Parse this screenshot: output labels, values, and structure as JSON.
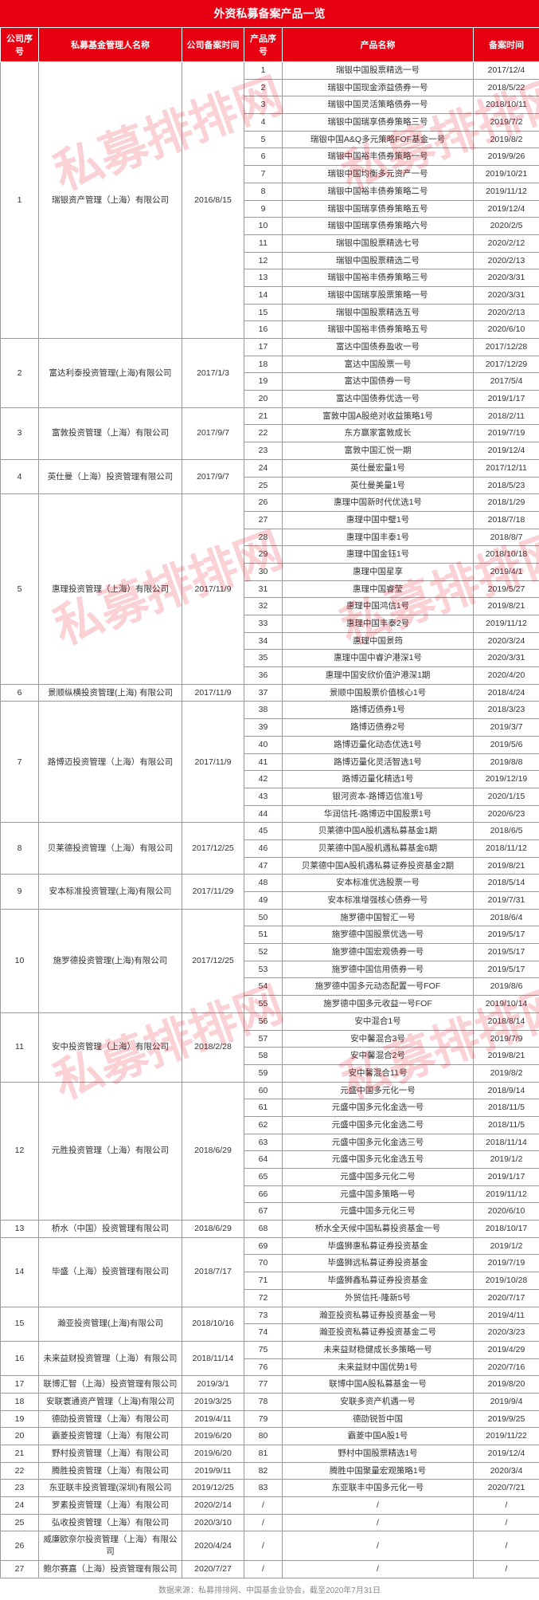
{
  "title": "外资私募备案产品一览",
  "watermark": "私募排排网",
  "headers": {
    "company_seq": "公司序号",
    "manager_name": "私募基金管理人名称",
    "company_reg_date": "公司备案时间",
    "product_seq": "产品序号",
    "product_name": "产品名称",
    "reg_date": "备案时间"
  },
  "footer": "数据来源：私募排排网、中国基金业协会，截至2020年7月31日",
  "companies": [
    {
      "seq": "1",
      "mgr": "瑞银资产管理（上海）有限公司",
      "cdate": "2016/8/15",
      "products": [
        {
          "pseq": "1",
          "pname": "瑞银中国股票精选一号",
          "pdate": "2017/12/4"
        },
        {
          "pseq": "2",
          "pname": "瑞银中国现金添益债券一号",
          "pdate": "2018/5/22"
        },
        {
          "pseq": "3",
          "pname": "瑞银中国灵活策略债券一号",
          "pdate": "2018/10/11"
        },
        {
          "pseq": "4",
          "pname": "瑞银中国瑞享债券策略三号",
          "pdate": "2019/7/2"
        },
        {
          "pseq": "5",
          "pname": "瑞银中国A&Q多元策略FOF基金一号",
          "pdate": "2019/8/2"
        },
        {
          "pseq": "6",
          "pname": "瑞银中国裕丰债券策略一号",
          "pdate": "2019/9/26"
        },
        {
          "pseq": "7",
          "pname": "瑞银中国均衡多元资产一号",
          "pdate": "2019/10/21"
        },
        {
          "pseq": "8",
          "pname": "瑞银中国裕丰债券策略二号",
          "pdate": "2019/11/12"
        },
        {
          "pseq": "9",
          "pname": "瑞银中国瑞享债券策略五号",
          "pdate": "2019/12/4"
        },
        {
          "pseq": "10",
          "pname": "瑞银中国瑞享债券策略六号",
          "pdate": "2020/2/5"
        },
        {
          "pseq": "11",
          "pname": "瑞银中国股票精选七号",
          "pdate": "2020/2/12"
        },
        {
          "pseq": "12",
          "pname": "瑞银中国股票精选二号",
          "pdate": "2020/2/13"
        },
        {
          "pseq": "13",
          "pname": "瑞银中国裕丰债券策略三号",
          "pdate": "2020/3/31"
        },
        {
          "pseq": "14",
          "pname": "瑞银中国瑞享股票策略一号",
          "pdate": "2020/3/31"
        },
        {
          "pseq": "15",
          "pname": "瑞银中国股票精选五号",
          "pdate": "2020/2/13"
        },
        {
          "pseq": "16",
          "pname": "瑞银中国裕丰债券策略五号",
          "pdate": "2020/6/10"
        }
      ]
    },
    {
      "seq": "2",
      "mgr": "富达利泰投资管理(上海)有限公司",
      "cdate": "2017/1/3",
      "products": [
        {
          "pseq": "17",
          "pname": "富达中国债券盈收一号",
          "pdate": "2017/12/28"
        },
        {
          "pseq": "18",
          "pname": "富达中国股票一号",
          "pdate": "2017/12/29"
        },
        {
          "pseq": "19",
          "pname": "富达中国债券一号",
          "pdate": "2017/5/4"
        },
        {
          "pseq": "20",
          "pname": "富达中国债券优选一号",
          "pdate": "2019/1/17"
        }
      ]
    },
    {
      "seq": "3",
      "mgr": "富敦投资管理（上海）有限公司",
      "cdate": "2017/9/7",
      "products": [
        {
          "pseq": "21",
          "pname": "富敦中国A股绝对收益策略1号",
          "pdate": "2018/2/11"
        },
        {
          "pseq": "22",
          "pname": "东方赢家富敦成长",
          "pdate": "2019/7/19"
        },
        {
          "pseq": "23",
          "pname": "富敦中国汇悦一期",
          "pdate": "2019/12/4"
        }
      ]
    },
    {
      "seq": "4",
      "mgr": "英仕曼（上海）投资管理有限公司",
      "cdate": "2017/9/7",
      "products": [
        {
          "pseq": "24",
          "pname": "英仕曼宏量1号",
          "pdate": "2017/12/11"
        },
        {
          "pseq": "25",
          "pname": "英仕曼美量1号",
          "pdate": "2018/5/23"
        }
      ]
    },
    {
      "seq": "5",
      "mgr": "惠理投资管理（上海）有限公司",
      "cdate": "2017/11/9",
      "products": [
        {
          "pseq": "26",
          "pname": "惠理中国新时代优选1号",
          "pdate": "2018/1/29"
        },
        {
          "pseq": "27",
          "pname": "惠理中国中璧1号",
          "pdate": "2018/7/18"
        },
        {
          "pseq": "28",
          "pname": "惠理中国丰泰1号",
          "pdate": "2018/8/7"
        },
        {
          "pseq": "29",
          "pname": "惠理中国金钰1号",
          "pdate": "2018/10/18"
        },
        {
          "pseq": "30",
          "pname": "惠理中国星享",
          "pdate": "2019/4/1"
        },
        {
          "pseq": "31",
          "pname": "惠理中国睿莹",
          "pdate": "2019/5/27"
        },
        {
          "pseq": "32",
          "pname": "惠理中国鸿信1号",
          "pdate": "2019/8/21"
        },
        {
          "pseq": "33",
          "pname": "惠理中国丰泰2号",
          "pdate": "2019/11/12"
        },
        {
          "pseq": "34",
          "pname": "惠理中国景筠",
          "pdate": "2020/3/24"
        },
        {
          "pseq": "35",
          "pname": "惠理中国中睿沪港深1号",
          "pdate": "2020/3/31"
        },
        {
          "pseq": "36",
          "pname": "惠理中国安欣价值沪港深1期",
          "pdate": "2020/4/20"
        }
      ]
    },
    {
      "seq": "6",
      "mgr": "景顺纵横投资管理(上海) 有限公司",
      "cdate": "2017/11/9",
      "products": [
        {
          "pseq": "37",
          "pname": "景顺中国股票价值核心1号",
          "pdate": "2018/4/24"
        }
      ]
    },
    {
      "seq": "7",
      "mgr": "路博迈投资管理（上海）有限公司",
      "cdate": "2017/11/9",
      "products": [
        {
          "pseq": "38",
          "pname": "路博迈债券1号",
          "pdate": "2018/3/23"
        },
        {
          "pseq": "39",
          "pname": "路博迈债券2号",
          "pdate": "2019/3/7"
        },
        {
          "pseq": "40",
          "pname": "路博迈量化动态优选1号",
          "pdate": "2019/5/6"
        },
        {
          "pseq": "41",
          "pname": "路博迈量化灵活智选1号",
          "pdate": "2019/8/8"
        },
        {
          "pseq": "42",
          "pname": "路博迈量化精选1号",
          "pdate": "2019/12/19"
        },
        {
          "pseq": "43",
          "pname": "银河资本-路博迈信准1号",
          "pdate": "2020/1/15"
        },
        {
          "pseq": "44",
          "pname": "华润信托-路博迈中国股票1号",
          "pdate": "2020/6/23"
        }
      ]
    },
    {
      "seq": "8",
      "mgr": "贝莱德投资管理（上海）有限公司",
      "cdate": "2017/12/25",
      "products": [
        {
          "pseq": "45",
          "pname": "贝莱德中国A股机遇私募基金1期",
          "pdate": "2018/6/5"
        },
        {
          "pseq": "46",
          "pname": "贝莱德中国A股机遇私募基金6期",
          "pdate": "2018/11/12"
        },
        {
          "pseq": "47",
          "pname": "贝莱德中国A股机遇私募证券投资基金2期",
          "pdate": "2019/8/21"
        }
      ]
    },
    {
      "seq": "9",
      "mgr": "安本标准投资管理(上海)有限公司",
      "cdate": "2017/11/29",
      "products": [
        {
          "pseq": "48",
          "pname": "安本标准优选股票一号",
          "pdate": "2018/5/14"
        },
        {
          "pseq": "49",
          "pname": "安本标准增强核心债券一号",
          "pdate": "2019/7/31"
        }
      ]
    },
    {
      "seq": "10",
      "mgr": "施罗德投资管理(上海)有限公司",
      "cdate": "2017/12/25",
      "products": [
        {
          "pseq": "50",
          "pname": "施罗德中国智汇一号",
          "pdate": "2018/6/4"
        },
        {
          "pseq": "51",
          "pname": "施罗德中国股票优选一号",
          "pdate": "2019/5/17"
        },
        {
          "pseq": "52",
          "pname": "施罗德中国宏观债券一号",
          "pdate": "2019/5/17"
        },
        {
          "pseq": "53",
          "pname": "施罗德中国信用债券一号",
          "pdate": "2019/5/17"
        },
        {
          "pseq": "54",
          "pname": "施罗德中国多元动态配置一号FOF",
          "pdate": "2019/8/6"
        },
        {
          "pseq": "55",
          "pname": "施罗德中国多元收益一号FOF",
          "pdate": "2019/10/14"
        }
      ]
    },
    {
      "seq": "11",
      "mgr": "安中投资管理（上海）有限公司",
      "cdate": "2018/2/28",
      "products": [
        {
          "pseq": "56",
          "pname": "安中混合1号",
          "pdate": "2018/8/14"
        },
        {
          "pseq": "57",
          "pname": "安中馨混合3号",
          "pdate": "2019/7/9"
        },
        {
          "pseq": "58",
          "pname": "安中馨混合2号",
          "pdate": "2019/8/21"
        },
        {
          "pseq": "59",
          "pname": "安中馨混合11号",
          "pdate": "2019/8/2"
        }
      ]
    },
    {
      "seq": "12",
      "mgr": "元胜投资管理（上海）有限公司",
      "cdate": "2018/6/29",
      "products": [
        {
          "pseq": "60",
          "pname": "元盛中国多元化一号",
          "pdate": "2018/9/14"
        },
        {
          "pseq": "61",
          "pname": "元盛中国多元化金选一号",
          "pdate": "2018/11/5"
        },
        {
          "pseq": "62",
          "pname": "元盛中国多元化金选二号",
          "pdate": "2018/11/5"
        },
        {
          "pseq": "63",
          "pname": "元盛中国多元化金选三号",
          "pdate": "2018/11/14"
        },
        {
          "pseq": "64",
          "pname": "元盛中国多元化金选五号",
          "pdate": "2019/1/2"
        },
        {
          "pseq": "65",
          "pname": "元盛中国多元化二号",
          "pdate": "2019/1/17"
        },
        {
          "pseq": "66",
          "pname": "元盛中国多策略一号",
          "pdate": "2019/11/12"
        },
        {
          "pseq": "67",
          "pname": "元盛中国多元化三号",
          "pdate": "2020/6/10"
        }
      ]
    },
    {
      "seq": "13",
      "mgr": "桥水（中国）投资管理有限公司",
      "cdate": "2018/6/29",
      "products": [
        {
          "pseq": "68",
          "pname": "桥水全天候中国私募投资基金一号",
          "pdate": "2018/10/17"
        }
      ]
    },
    {
      "seq": "14",
      "mgr": "毕盛（上海）投资管理有限公司",
      "cdate": "2018/7/17",
      "products": [
        {
          "pseq": "69",
          "pname": "毕盛狮惠私募证券投资基金",
          "pdate": "2019/1/2"
        },
        {
          "pseq": "70",
          "pname": "毕盛狮远私募证券投资基金",
          "pdate": "2019/7/19"
        },
        {
          "pseq": "71",
          "pname": "毕盛狮鑫私募证券投资基金",
          "pdate": "2019/10/28"
        },
        {
          "pseq": "72",
          "pname": "外贸信托-隆新5号",
          "pdate": "2020/7/17"
        }
      ]
    },
    {
      "seq": "15",
      "mgr": "瀚亚投资管理(上海)有限公司",
      "cdate": "2018/10/16",
      "products": [
        {
          "pseq": "73",
          "pname": "瀚亚投资私募证券投资基金一号",
          "pdate": "2019/4/11"
        },
        {
          "pseq": "74",
          "pname": "瀚亚投资私募证券投资基金二号",
          "pdate": "2020/3/23"
        }
      ]
    },
    {
      "seq": "16",
      "mgr": "未来益财投资管理（上海）有限公司",
      "cdate": "2018/11/14",
      "products": [
        {
          "pseq": "75",
          "pname": "未来益财稳健成长多策略一号",
          "pdate": "2019/4/29"
        },
        {
          "pseq": "76",
          "pname": "未来益财中国优势1号",
          "pdate": "2020/7/16"
        }
      ]
    },
    {
      "seq": "17",
      "mgr": "联博汇智（上海）投资管理有限公司",
      "cdate": "2019/3/1",
      "products": [
        {
          "pseq": "77",
          "pname": "联博中国A股私募基金一号",
          "pdate": "2019/8/20"
        }
      ]
    },
    {
      "seq": "18",
      "mgr": "安联寰通资产管理（上海)有限公司",
      "cdate": "2019/3/25",
      "products": [
        {
          "pseq": "78",
          "pname": "安联多资产机遇一号",
          "pdate": "2019/9/4"
        }
      ]
    },
    {
      "seq": "19",
      "mgr": "德劭投资管理（上海）有限公司",
      "cdate": "2019/4/11",
      "products": [
        {
          "pseq": "79",
          "pname": "德劭锐哲中国",
          "pdate": "2019/9/25"
        }
      ]
    },
    {
      "seq": "20",
      "mgr": "霸菱投资管理（上海）有限公司",
      "cdate": "2019/6/20",
      "products": [
        {
          "pseq": "80",
          "pname": "霸菱中国A股1号",
          "pdate": "2019/11/22"
        }
      ]
    },
    {
      "seq": "21",
      "mgr": "野村投资管理（上海）有限公司",
      "cdate": "2019/6/20",
      "products": [
        {
          "pseq": "81",
          "pname": "野村中国股票精选1号",
          "pdate": "2019/12/4"
        }
      ]
    },
    {
      "seq": "22",
      "mgr": "腾胜投资管理（上海）有限公司",
      "cdate": "2019/9/11",
      "products": [
        {
          "pseq": "82",
          "pname": "腾胜中国聚量宏观策略1号",
          "pdate": "2020/3/4"
        }
      ]
    },
    {
      "seq": "23",
      "mgr": "东亚联丰投资管理(深圳)有限公司",
      "cdate": "2019/12/25",
      "products": [
        {
          "pseq": "83",
          "pname": "东亚联丰中国多元化一号",
          "pdate": "2020/7/21"
        }
      ]
    },
    {
      "seq": "24",
      "mgr": "罗素投资管理（上海）有限公司",
      "cdate": "2020/2/14",
      "products": [
        {
          "pseq": "/",
          "pname": "/",
          "pdate": "/"
        }
      ]
    },
    {
      "seq": "25",
      "mgr": "弘收投资管理（上海）有限公司",
      "cdate": "2020/3/10",
      "products": [
        {
          "pseq": "/",
          "pname": "/",
          "pdate": "/"
        }
      ]
    },
    {
      "seq": "26",
      "mgr": "威廉欧奈尔投资管理（上海）有限公司",
      "cdate": "2020/4/24",
      "products": [
        {
          "pseq": "/",
          "pname": "/",
          "pdate": "/"
        }
      ]
    },
    {
      "seq": "27",
      "mgr": "鲍尔赛嘉（上海）投资管理有限公司",
      "cdate": "2020/7/27",
      "products": [
        {
          "pseq": "/",
          "pname": "/",
          "pdate": "/"
        }
      ]
    }
  ]
}
